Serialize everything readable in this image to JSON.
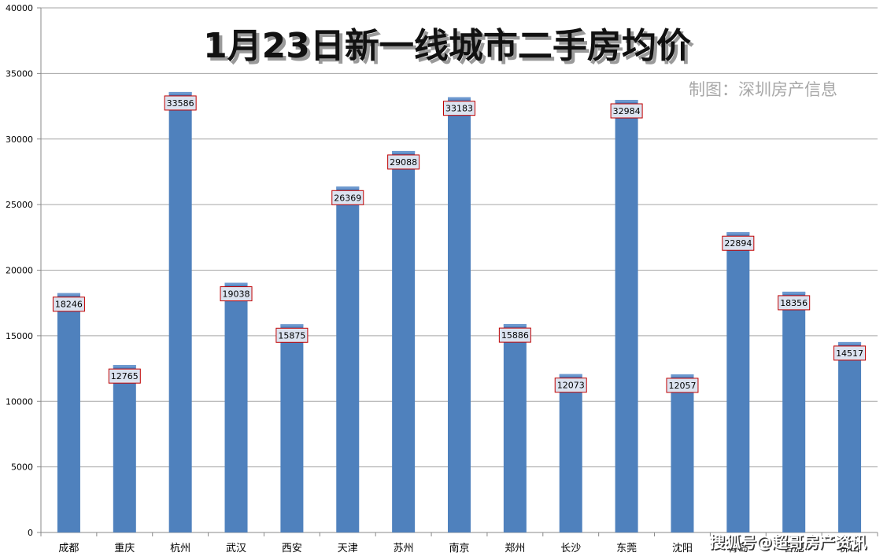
{
  "chart_data": {
    "type": "bar",
    "title": "1月23日新一线城市二手房均价",
    "subtitle": "制图：深圳房产信息",
    "categories": [
      "成都",
      "重庆",
      "杭州",
      "武汉",
      "西安",
      "天津",
      "苏州",
      "南京",
      "郑州",
      "长沙",
      "东莞",
      "沈阳",
      "青岛",
      "合肥",
      "佛山"
    ],
    "values": [
      18246,
      12765,
      33586,
      19038,
      15875,
      26369,
      29088,
      33183,
      15886,
      12073,
      32984,
      12057,
      22894,
      18356,
      14517
    ],
    "ylim": [
      0,
      40000
    ],
    "yticks": [
      0,
      5000,
      10000,
      15000,
      20000,
      25000,
      30000,
      35000,
      40000
    ],
    "grid": true,
    "bar_color": "#4f81bd",
    "label_border_color": "#c00000",
    "label_fill_color": "#dce3f0"
  },
  "watermark": "搜狐号@超哥房产资讯"
}
